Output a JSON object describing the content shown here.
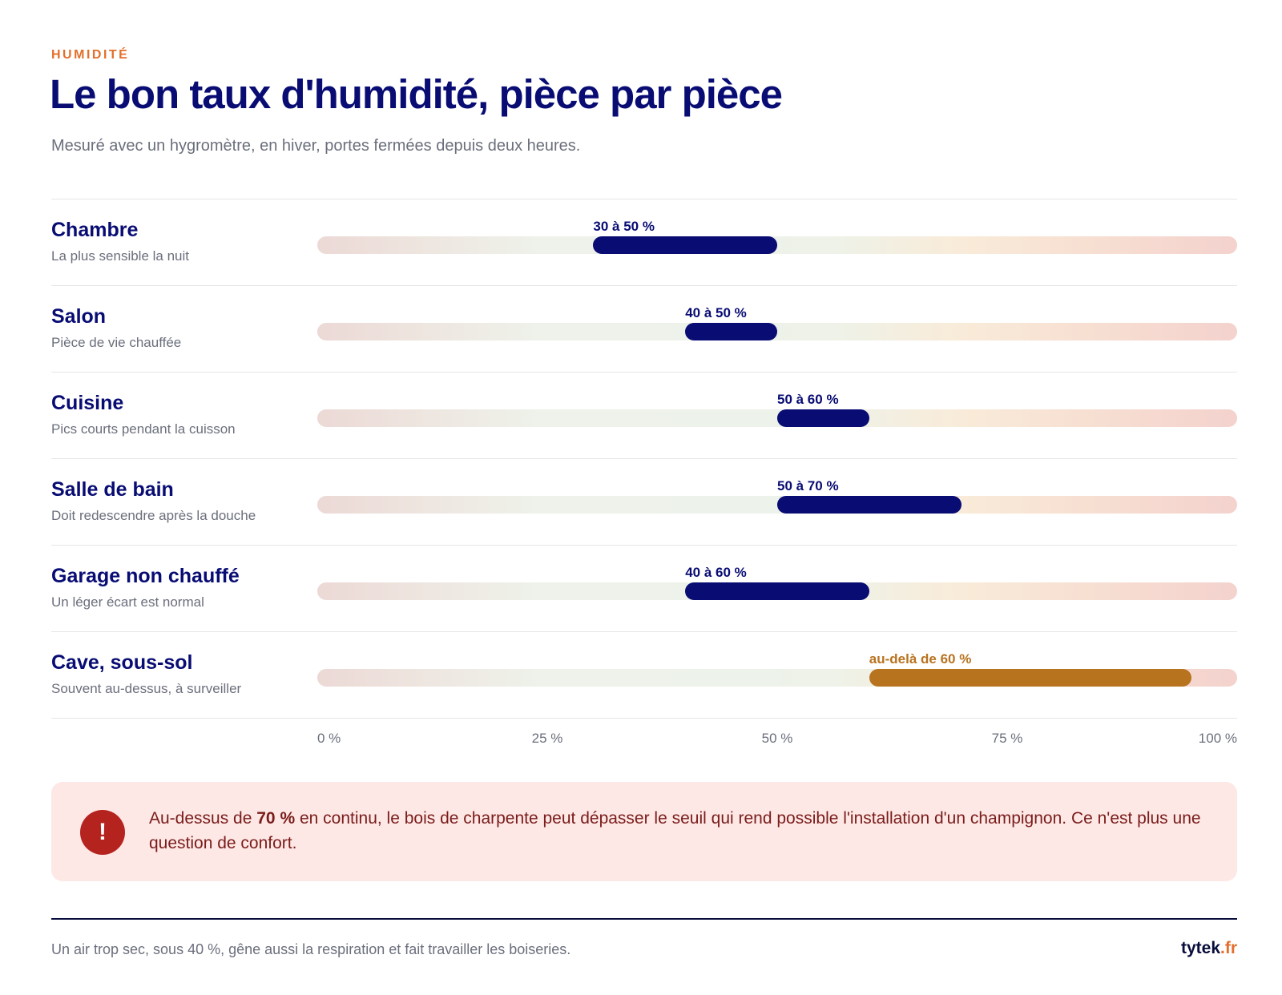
{
  "header": {
    "kicker": "HUMIDITÉ",
    "title": "Le bon taux d'humidité, pièce par pièce",
    "subtitle": "Mesuré avec un hygromètre, en hiver, portes fermées depuis deux heures."
  },
  "chart_data": {
    "type": "bar",
    "orientation": "horizontal range",
    "xlim": [
      0,
      100
    ],
    "x_ticks": [
      "0 %",
      "25 %",
      "50 %",
      "75 %",
      "100 %"
    ],
    "grid": false,
    "categories": [
      "Chambre",
      "Salon",
      "Cuisine",
      "Salle de bain",
      "Garage non chauffé",
      "Cave, sous-sol"
    ],
    "rows": [
      {
        "room": "Chambre",
        "note": "La plus sensible la nuit",
        "min": 30,
        "max": 50,
        "label": "30 à 50 %",
        "warn": false
      },
      {
        "room": "Salon",
        "note": "Pièce de vie chauffée",
        "min": 40,
        "max": 50,
        "label": "40 à 50 %",
        "warn": false
      },
      {
        "room": "Cuisine",
        "note": "Pics courts pendant la cuisson",
        "min": 50,
        "max": 60,
        "label": "50 à 60 %",
        "warn": false
      },
      {
        "room": "Salle de bain",
        "note": "Doit redescendre après la douche",
        "min": 50,
        "max": 70,
        "label": "50 à 70 %",
        "warn": false
      },
      {
        "room": "Garage non chauffé",
        "note": "Un léger écart est normal",
        "min": 40,
        "max": 60,
        "label": "40 à 60 %",
        "warn": false
      },
      {
        "room": "Cave, sous-sol",
        "note": "Souvent au-dessus, à surveiller",
        "min": 60,
        "max": 95,
        "label": "au-delà de 60 %",
        "warn": true
      }
    ],
    "colors": {
      "range": "#080c73",
      "warning": "#b8731f"
    }
  },
  "alert": {
    "icon": "exclamation-icon",
    "text_before": "Au-dessus de ",
    "highlight": "70 %",
    "text_after": " en continu, le bois de charpente peut dépasser le seuil qui rend possible l'installation d'un champignon. Ce n'est plus une question de confort."
  },
  "footer": {
    "note": "Un air trop sec, sous 40 %, gêne aussi la respiration et fait travailler les boiseries.",
    "brand_name": "tytek",
    "brand_tld": ".fr"
  },
  "colors": {
    "accent": "#e36f2c",
    "navy": "#080c73",
    "alert_bg": "#fde8e6",
    "alert_icon": "#b5231f"
  }
}
